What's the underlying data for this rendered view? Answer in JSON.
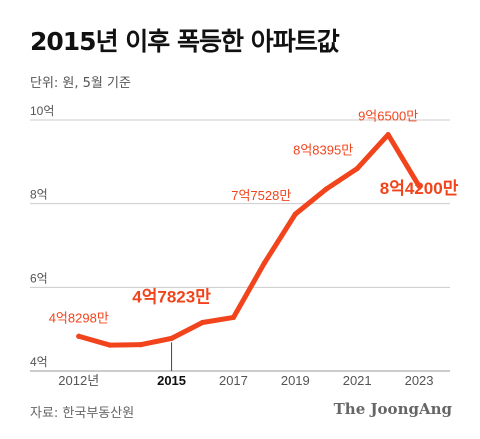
{
  "header": {
    "title": "2015년 이후 폭등한 아파트값",
    "unit_note": "단위: 원, 5월 기준"
  },
  "footer": {
    "source": "자료: 한국부동산원",
    "brand": "The JoongAng"
  },
  "colors": {
    "line": "#f2441c",
    "grid": "#cccccc",
    "axis_text": "#555555",
    "label_text": "#f2441c",
    "marker": "#444444"
  },
  "chart_data": {
    "type": "line",
    "title": "2015년 이후 폭등한 아파트값",
    "subtitle": "단위: 원, 5월 기준",
    "xlabel": "",
    "ylabel": "",
    "x": [
      2012,
      2013,
      2014,
      2015,
      2016,
      2017,
      2018,
      2019,
      2020,
      2021,
      2022,
      2023
    ],
    "x_tick_labels": [
      {
        "x": 2012,
        "label": "2012년",
        "bold": false
      },
      {
        "x": 2015,
        "label": "2015",
        "bold": true
      },
      {
        "x": 2017,
        "label": "2017",
        "bold": false
      },
      {
        "x": 2019,
        "label": "2019",
        "bold": false
      },
      {
        "x": 2021,
        "label": "2021",
        "bold": false
      },
      {
        "x": 2023,
        "label": "2023",
        "bold": false
      }
    ],
    "y_ticks": [
      {
        "value": 4,
        "label": "4억"
      },
      {
        "value": 6,
        "label": "6억"
      },
      {
        "value": 8,
        "label": "8억"
      },
      {
        "value": 10,
        "label": "10억"
      }
    ],
    "ylim": [
      4,
      10
    ],
    "xlim": [
      2011.2,
      2024
    ],
    "grid": true,
    "legend": "none",
    "series": [
      {
        "values": [
          4.83,
          4.62,
          4.63,
          4.78,
          5.16,
          5.28,
          6.58,
          7.75,
          8.35,
          8.84,
          9.65,
          8.42
        ]
      }
    ],
    "annotations": [
      {
        "x": 2012,
        "y": 4.83,
        "text": "4억8298만",
        "size": "normal",
        "anchor": "middle",
        "dy": -14
      },
      {
        "x": 2015,
        "y": 4.78,
        "text": "4억7823만",
        "size": "large",
        "anchor": "middle",
        "dy": -36
      },
      {
        "x": 2019,
        "y": 7.75,
        "text": "7억7528만",
        "size": "normal",
        "anchor": "end",
        "dy": -14
      },
      {
        "x": 2021,
        "y": 8.84,
        "text": "8억8395만",
        "size": "normal",
        "anchor": "end",
        "dy": -14
      },
      {
        "x": 2022,
        "y": 9.65,
        "text": "9억6500만",
        "size": "normal",
        "anchor": "middle",
        "dy": -14
      },
      {
        "x": 2023,
        "y": 8.42,
        "text": "8억4200만",
        "size": "large",
        "anchor": "middle",
        "dy": 8
      }
    ],
    "marker_year": 2015
  }
}
